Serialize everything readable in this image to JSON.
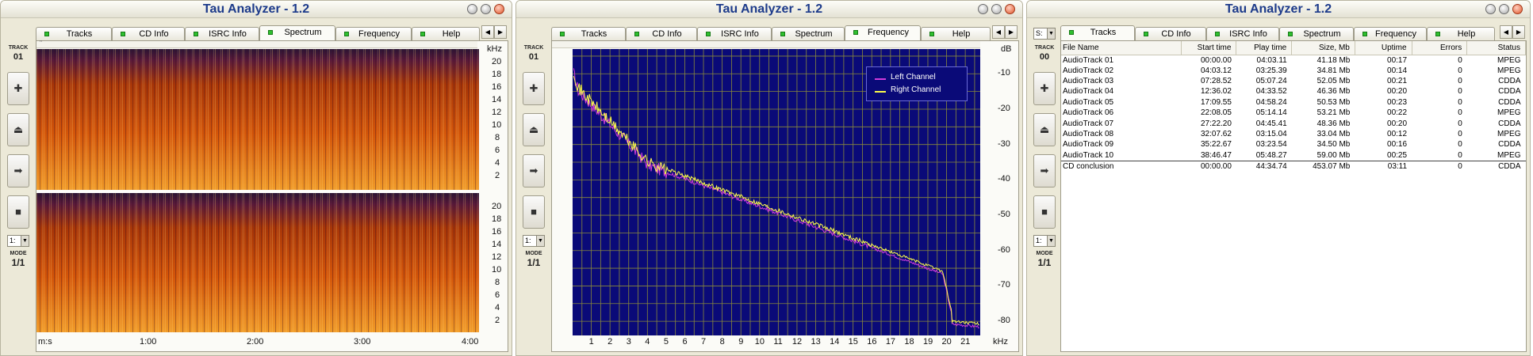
{
  "app": {
    "title": "Tau Analyzer - 1.2"
  },
  "left_strip": {
    "track_label": "TRACK",
    "mode_label": "MODE",
    "mode_value": "1/1",
    "select_value": "1:",
    "buttons": [
      {
        "icon": "plus-icon",
        "glyph": "✚"
      },
      {
        "icon": "eject-icon",
        "glyph": "⏏"
      },
      {
        "icon": "arrow-right-icon",
        "glyph": "➡"
      },
      {
        "icon": "stop-icon",
        "glyph": "■"
      }
    ]
  },
  "tabs": [
    "Tracks",
    "CD Info",
    "ISRC Info",
    "Spectrum",
    "Frequency",
    "Help"
  ],
  "tab_nav": {
    "prev": "◀",
    "next": "▶"
  },
  "window1": {
    "track_number": "01",
    "active_tab": "Spectrum",
    "ruler_mark": "''",
    "y_unit": "kHz",
    "y_ticks": [
      "20",
      "18",
      "16",
      "14",
      "12",
      "10",
      "8",
      "6",
      "4",
      "2"
    ],
    "x_unit": "m:s",
    "x_ticks": [
      "1:00",
      "2:00",
      "3:00",
      "4:00"
    ]
  },
  "window2": {
    "track_number": "01",
    "active_tab": "Frequency",
    "y_unit": "dB",
    "y_ticks": [
      "-10",
      "-20",
      "-30",
      "-40",
      "-50",
      "-60",
      "-70",
      "-80"
    ],
    "x_unit": "kHz",
    "x_ticks": [
      "1",
      "2",
      "3",
      "4",
      "5",
      "6",
      "7",
      "8",
      "9",
      "10",
      "11",
      "12",
      "13",
      "14",
      "15",
      "16",
      "17",
      "18",
      "19",
      "20",
      "21"
    ],
    "legend": [
      {
        "name": "Left Channel",
        "color": "#d23cdc"
      },
      {
        "name": "Right Channel",
        "color": "#ffff4a"
      }
    ]
  },
  "window3": {
    "track_number": "00",
    "active_tab": "Tracks",
    "select_value": "S:",
    "columns": [
      "File Name",
      "Start time",
      "Play time",
      "Size, Mb",
      "Uptime",
      "Errors",
      "Status"
    ],
    "rows": [
      [
        "AudioTrack 01",
        "00:00.00",
        "04:03.11",
        "41.18 Mb",
        "00:17",
        "0",
        "MPEG"
      ],
      [
        "AudioTrack 02",
        "04:03.12",
        "03:25.39",
        "34.81 Mb",
        "00:14",
        "0",
        "MPEG"
      ],
      [
        "AudioTrack 03",
        "07:28.52",
        "05:07.24",
        "52.05 Mb",
        "00:21",
        "0",
        "CDDA"
      ],
      [
        "AudioTrack 04",
        "12:36.02",
        "04:33.52",
        "46.36 Mb",
        "00:20",
        "0",
        "CDDA"
      ],
      [
        "AudioTrack 05",
        "17:09.55",
        "04:58.24",
        "50.53 Mb",
        "00:23",
        "0",
        "CDDA"
      ],
      [
        "AudioTrack 06",
        "22:08.05",
        "05:14.14",
        "53.21 Mb",
        "00:22",
        "0",
        "MPEG"
      ],
      [
        "AudioTrack 07",
        "27:22.20",
        "04:45.41",
        "48.36 Mb",
        "00:20",
        "0",
        "CDDA"
      ],
      [
        "AudioTrack 08",
        "32:07.62",
        "03:15.04",
        "33.04 Mb",
        "00:12",
        "0",
        "MPEG"
      ],
      [
        "AudioTrack 09",
        "35:22.67",
        "03:23.54",
        "34.50 Mb",
        "00:16",
        "0",
        "CDDA"
      ],
      [
        "AudioTrack 10",
        "38:46.47",
        "05:48.27",
        "59.00 Mb",
        "00:25",
        "0",
        "MPEG"
      ]
    ],
    "summary": [
      "CD conclusion",
      "00:00.00",
      "44:34.74",
      "453.07 Mb",
      "03:11",
      "0",
      "CDDA"
    ]
  },
  "colors": {
    "title": "#1c3a8a",
    "plot_bg": "#0a0a78",
    "grid": "#8a8a3a",
    "spectrum_dark": "#3a1a3a",
    "spectrum_mid": "#c04a00",
    "spectrum_hot": "#f0a020"
  }
}
